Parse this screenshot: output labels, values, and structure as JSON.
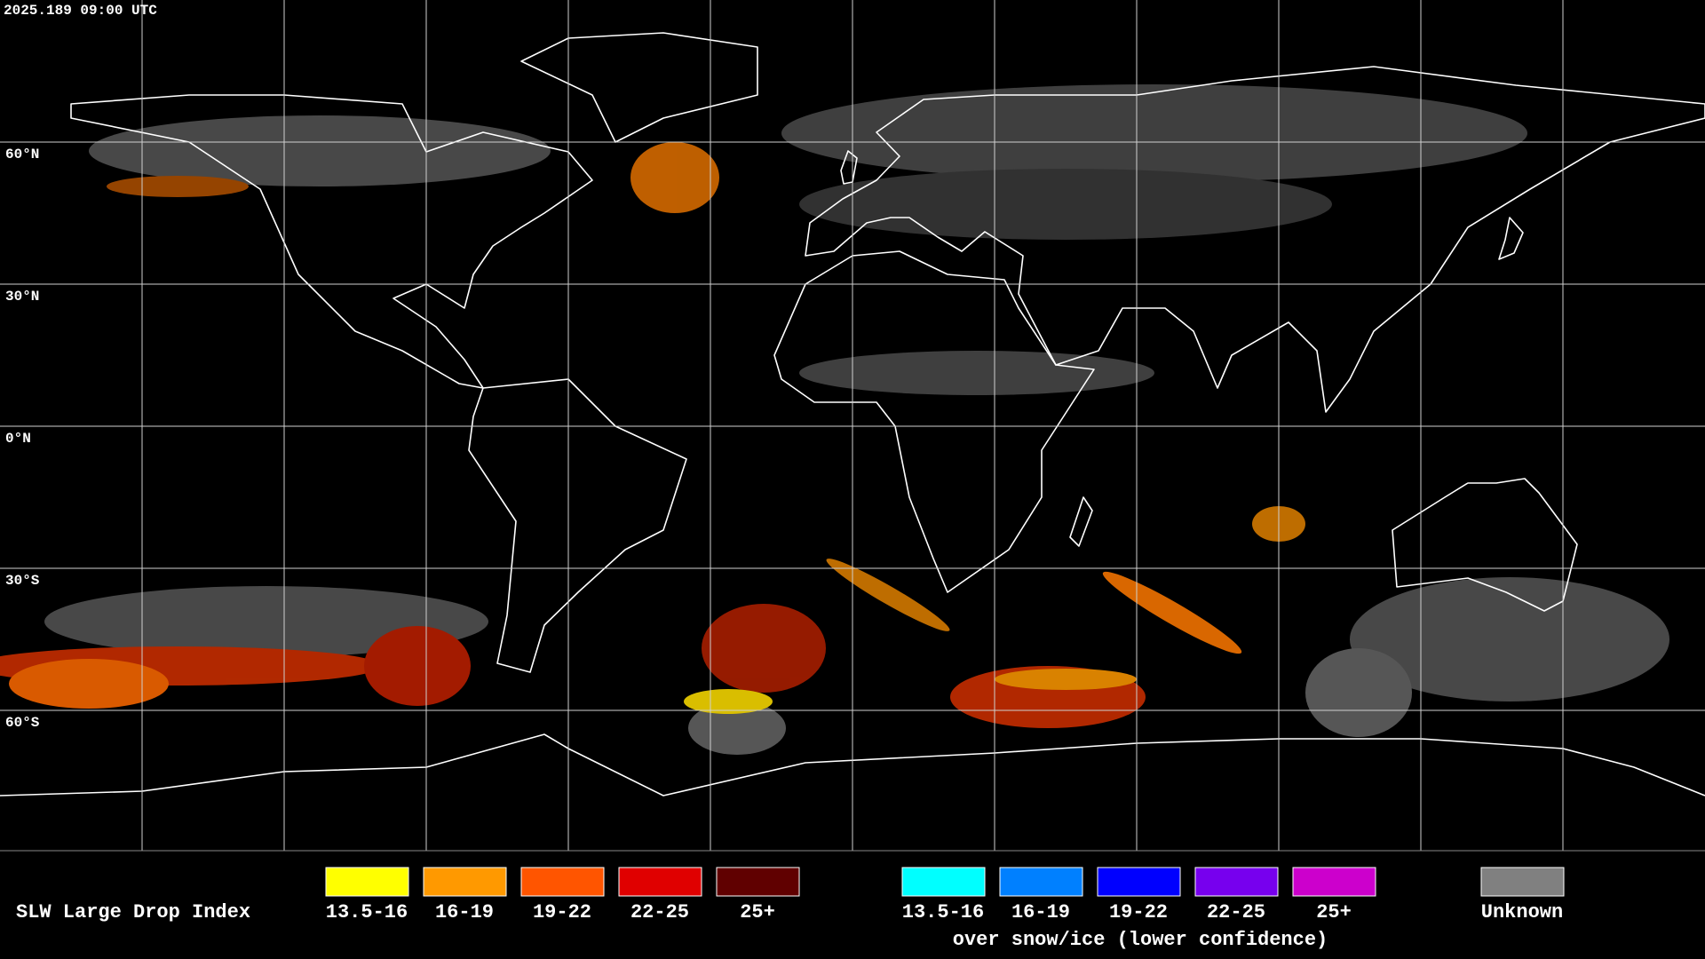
{
  "header": {
    "timestamp": "2025.189 09:00 UTC"
  },
  "map": {
    "lat_labels": [
      "60°N",
      "30°N",
      "0°N",
      "30°S",
      "60°S"
    ]
  },
  "legend": {
    "title": "SLW Large Drop Index",
    "items": [
      {
        "label": "13.5-16",
        "color": "#ffff00"
      },
      {
        "label": "16-19",
        "color": "#ff9900"
      },
      {
        "label": "19-22",
        "color": "#ff5500"
      },
      {
        "label": "22-25",
        "color": "#e00000"
      },
      {
        "label": "25+",
        "color": "#600000"
      }
    ],
    "snow_items": [
      {
        "label": "13.5-16",
        "color": "#00ffff"
      },
      {
        "label": "16-19",
        "color": "#0080ff"
      },
      {
        "label": "19-22",
        "color": "#0000ff"
      },
      {
        "label": "22-25",
        "color": "#7700ee"
      },
      {
        "label": "25+",
        "color": "#cc00cc"
      }
    ],
    "snow_note": "over snow/ice (lower confidence)",
    "unknown": {
      "label": "Unknown",
      "color": "#808080"
    }
  }
}
